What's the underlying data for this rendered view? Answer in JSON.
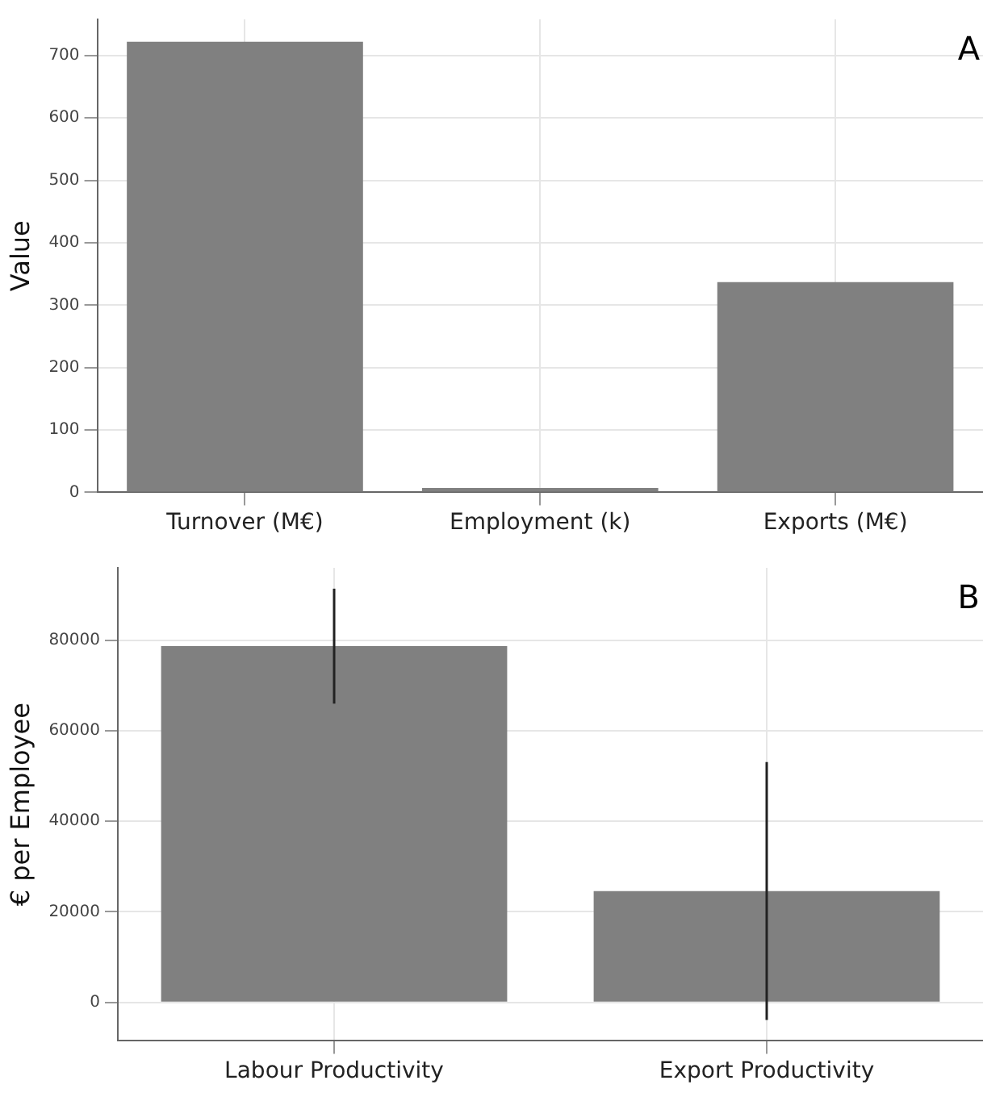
{
  "chart_data": [
    {
      "type": "bar",
      "ylabel": "Value",
      "categories": [
        "Turnover (M€)",
        "Employment (k)",
        "Exports (M€)"
      ],
      "values": [
        722,
        7,
        337
      ],
      "color": "#808080",
      "ylim": [
        0,
        758
      ],
      "yticks": [
        0,
        100,
        200,
        300,
        400,
        500,
        600,
        700
      ],
      "grid": true,
      "annotations": [
        "A"
      ]
    },
    {
      "type": "bar",
      "ylabel": "€ per Employee",
      "categories": [
        "Labour Productivity",
        "Export Productivity"
      ],
      "values": [
        78700,
        24600
      ],
      "errors": [
        12700,
        28500
      ],
      "color": "#808080",
      "ylim": [
        -8500,
        96000
      ],
      "yticks": [
        0,
        20000,
        40000,
        60000,
        80000
      ],
      "grid": true,
      "annotations": [
        "B"
      ]
    }
  ]
}
